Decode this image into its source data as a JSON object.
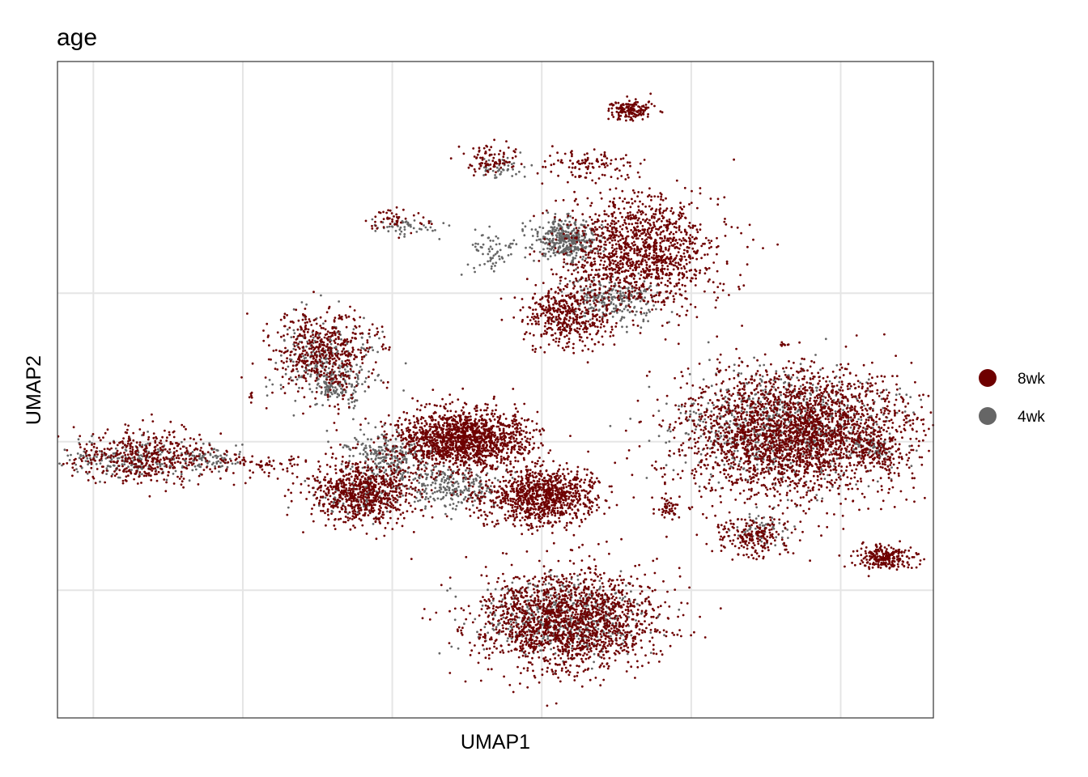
{
  "chart_data": {
    "type": "scatter",
    "title": "age",
    "xlabel": "UMAP1",
    "ylabel": "UMAP2",
    "xlim": [
      -16.2,
      13.1
    ],
    "ylim": [
      -9.3,
      12.8
    ],
    "x_gridlines": [
      -15,
      -10,
      -5,
      0,
      5,
      10
    ],
    "y_gridlines": [
      -5,
      0,
      5
    ],
    "tick_labels_shown": false,
    "grid": true,
    "legend": {
      "placement": "right",
      "entries": [
        {
          "label": "8wk",
          "color": "#6E0000"
        },
        {
          "label": "4wk",
          "color": "#666666"
        }
      ]
    },
    "series": [
      {
        "name": "8wk",
        "color": "#6E0000",
        "clusters": [
          {
            "cx": 3.0,
            "cy": 11.2,
            "rx": 0.7,
            "ry": 0.3,
            "n": 160
          },
          {
            "cx": -1.7,
            "cy": 9.5,
            "rx": 0.9,
            "ry": 0.5,
            "n": 90
          },
          {
            "cx": 1.6,
            "cy": 9.3,
            "rx": 1.5,
            "ry": 0.4,
            "n": 110
          },
          {
            "cx": 3.3,
            "cy": 6.4,
            "rx": 2.2,
            "ry": 1.7,
            "n": 1300
          },
          {
            "cx": 0.9,
            "cy": 4.2,
            "rx": 1.4,
            "ry": 1.0,
            "n": 450
          },
          {
            "cx": -7.3,
            "cy": 3.0,
            "rx": 1.5,
            "ry": 1.3,
            "n": 520
          },
          {
            "cx": -4.9,
            "cy": 7.5,
            "rx": 0.9,
            "ry": 0.4,
            "n": 50
          },
          {
            "cx": -13.4,
            "cy": -0.5,
            "rx": 2.2,
            "ry": 0.9,
            "n": 460
          },
          {
            "cx": -9.4,
            "cy": -0.8,
            "rx": 2.0,
            "ry": 0.4,
            "n": 80
          },
          {
            "cx": -2.6,
            "cy": 0.1,
            "rx": 2.1,
            "ry": 0.9,
            "n": 1500
          },
          {
            "cx": -5.9,
            "cy": -1.7,
            "rx": 1.7,
            "ry": 1.0,
            "n": 750
          },
          {
            "cx": -0.4,
            "cy": -2.0,
            "rx": 1.8,
            "ry": 0.9,
            "n": 500
          },
          {
            "cx": 0.4,
            "cy": -1.7,
            "rx": 1.4,
            "ry": 0.7,
            "n": 450
          },
          {
            "cx": 8.5,
            "cy": 0.3,
            "rx": 3.4,
            "ry": 1.9,
            "n": 2600
          },
          {
            "cx": 11.3,
            "cy": -0.4,
            "rx": 0.8,
            "ry": 0.4,
            "n": 60
          },
          {
            "cx": 4.3,
            "cy": -2.2,
            "rx": 0.4,
            "ry": 0.3,
            "n": 45
          },
          {
            "cx": 7.1,
            "cy": -3.2,
            "rx": 1.3,
            "ry": 0.7,
            "n": 200
          },
          {
            "cx": 11.5,
            "cy": -3.9,
            "rx": 0.9,
            "ry": 0.4,
            "n": 240
          },
          {
            "cx": 0.9,
            "cy": -6.0,
            "rx": 2.8,
            "ry": 1.5,
            "n": 1700
          },
          {
            "cx": 8.1,
            "cy": 3.3,
            "rx": 0.1,
            "ry": 0.1,
            "n": 8
          },
          {
            "cx": -9.7,
            "cy": 1.6,
            "rx": 0.1,
            "ry": 0.1,
            "n": 5
          }
        ]
      },
      {
        "name": "4wk",
        "color": "#666666",
        "clusters": [
          {
            "cx": -1.4,
            "cy": 9.2,
            "rx": 0.8,
            "ry": 0.4,
            "n": 45
          },
          {
            "cx": 0.8,
            "cy": 6.8,
            "rx": 1.0,
            "ry": 0.6,
            "n": 380
          },
          {
            "cx": 2.3,
            "cy": 4.8,
            "rx": 1.5,
            "ry": 0.7,
            "n": 260
          },
          {
            "cx": -1.5,
            "cy": 6.4,
            "rx": 1.0,
            "ry": 0.6,
            "n": 70
          },
          {
            "cx": -4.7,
            "cy": 7.2,
            "rx": 1.0,
            "ry": 0.3,
            "n": 50
          },
          {
            "cx": -7.2,
            "cy": 2.7,
            "rx": 1.5,
            "ry": 1.3,
            "n": 260
          },
          {
            "cx": -6.8,
            "cy": 1.8,
            "rx": 0.8,
            "ry": 0.5,
            "n": 90
          },
          {
            "cx": -13.7,
            "cy": -0.6,
            "rx": 2.0,
            "ry": 0.6,
            "n": 220
          },
          {
            "cx": -11.1,
            "cy": -0.6,
            "rx": 1.0,
            "ry": 0.4,
            "n": 80
          },
          {
            "cx": -5.1,
            "cy": -0.5,
            "rx": 1.4,
            "ry": 0.7,
            "n": 260
          },
          {
            "cx": -3.0,
            "cy": -1.5,
            "rx": 1.6,
            "ry": 0.7,
            "n": 260
          },
          {
            "cx": -6.0,
            "cy": -1.9,
            "rx": 1.3,
            "ry": 0.6,
            "n": 110
          },
          {
            "cx": 8.3,
            "cy": 0.5,
            "rx": 3.2,
            "ry": 1.6,
            "n": 800
          },
          {
            "cx": 11.0,
            "cy": -0.2,
            "rx": 0.7,
            "ry": 0.3,
            "n": 60
          },
          {
            "cx": 7.2,
            "cy": -3.0,
            "rx": 1.0,
            "ry": 0.4,
            "n": 60
          },
          {
            "cx": 0.7,
            "cy": -6.0,
            "rx": 2.5,
            "ry": 1.2,
            "n": 520
          }
        ]
      }
    ]
  }
}
